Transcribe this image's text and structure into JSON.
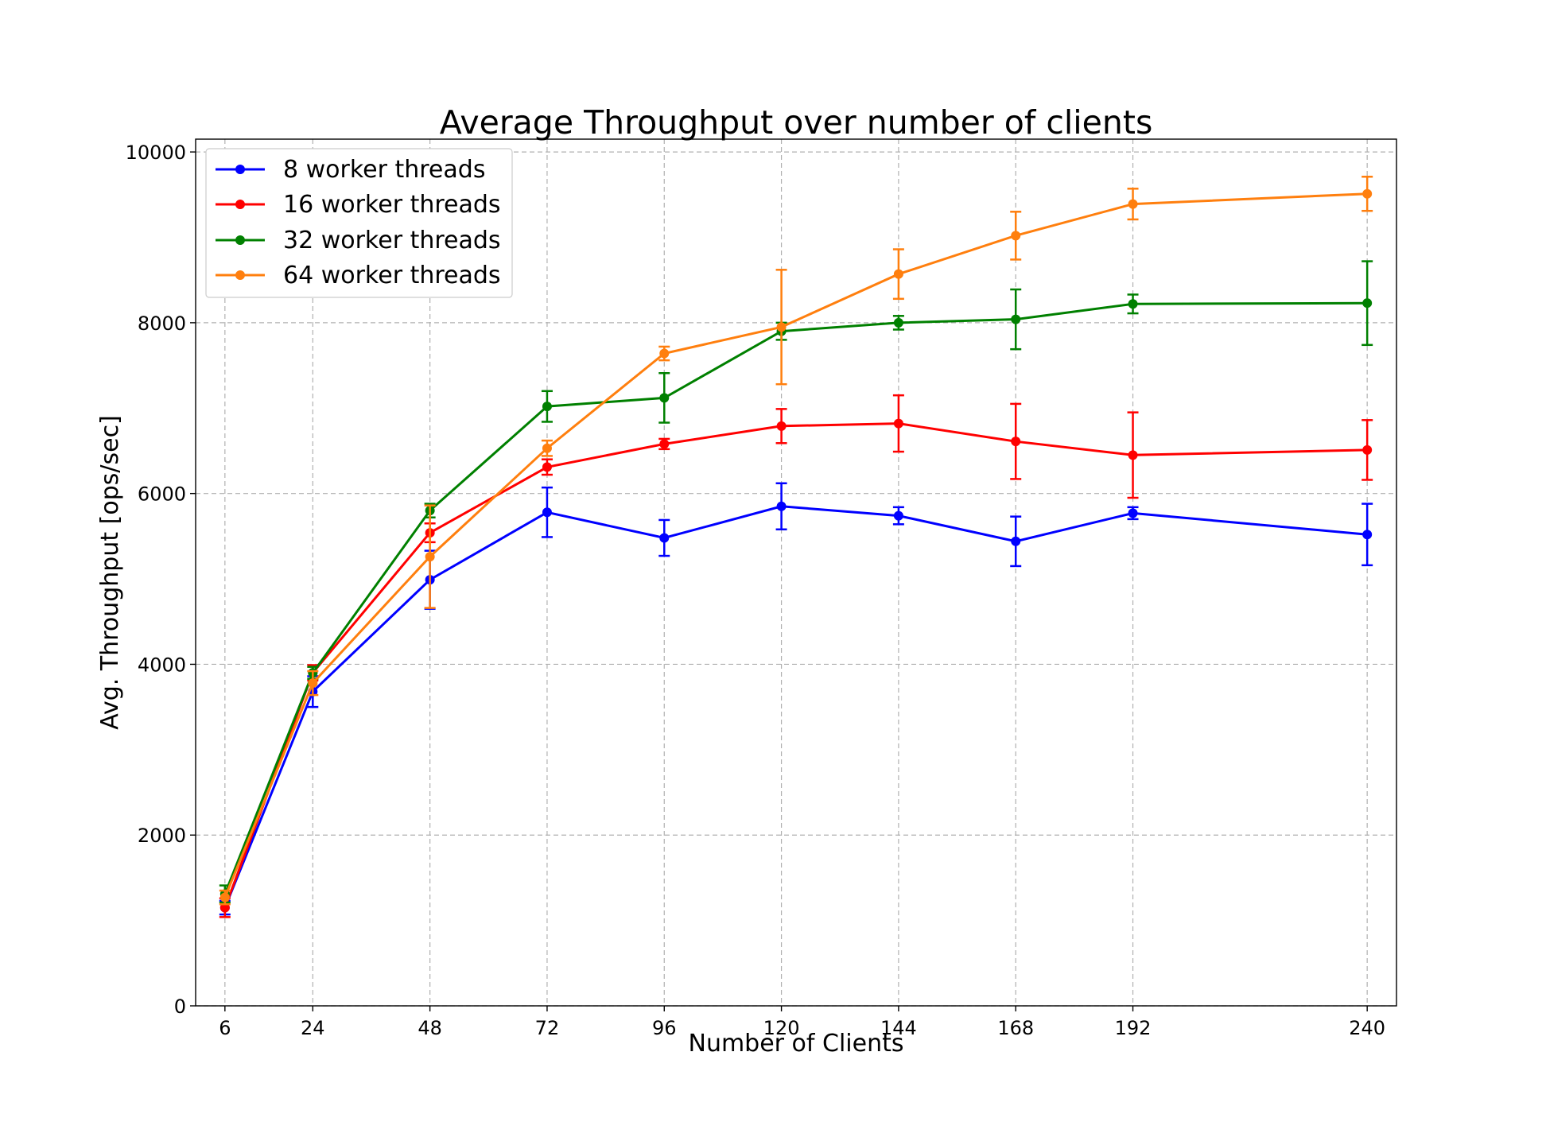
{
  "chart_data": {
    "type": "line",
    "title": "Average Throughput over number of clients",
    "xlabel": "Number of Clients",
    "ylabel": "Avg. Throughput [ops/sec]",
    "x": [
      6,
      24,
      48,
      72,
      96,
      120,
      144,
      168,
      192,
      240
    ],
    "x_ticks": [
      "6",
      "24",
      "48",
      "72",
      "96",
      "120",
      "144",
      "168",
      "192",
      "240"
    ],
    "xlim": [
      0,
      246
    ],
    "ylim": [
      0,
      10150
    ],
    "y_ticks": [
      0,
      2000,
      4000,
      6000,
      8000,
      10000
    ],
    "y_tick_labels": [
      "0",
      "2000",
      "4000",
      "6000",
      "8000",
      "10000"
    ],
    "grid": true,
    "legend_position": "top-left",
    "error_bars": true,
    "series": [
      {
        "name": "8 worker threads",
        "color": "#0000ff",
        "values": [
          1150,
          3680,
          4990,
          5780,
          5480,
          5850,
          5740,
          5440,
          5770,
          5520
        ],
        "errors": [
          80,
          180,
          340,
          290,
          210,
          270,
          100,
          290,
          70,
          360
        ]
      },
      {
        "name": "16 worker threads",
        "color": "#ff0000",
        "values": [
          1150,
          3900,
          5540,
          6310,
          6580,
          6790,
          6820,
          6610,
          6450,
          6510
        ],
        "errors": [
          110,
          90,
          110,
          90,
          60,
          200,
          330,
          440,
          500,
          350
        ]
      },
      {
        "name": "32 worker threads",
        "color": "#008000",
        "values": [
          1310,
          3900,
          5800,
          7020,
          7120,
          7900,
          8000,
          8040,
          8220,
          8230
        ],
        "errors": [
          100,
          70,
          80,
          180,
          290,
          100,
          80,
          350,
          110,
          490
        ]
      },
      {
        "name": "64 worker threads",
        "color": "#ff7f0e",
        "values": [
          1270,
          3780,
          5260,
          6530,
          7640,
          7950,
          8570,
          9020,
          9390,
          9510
        ],
        "errors": [
          80,
          140,
          600,
          90,
          80,
          670,
          290,
          280,
          180,
          200
        ]
      }
    ]
  }
}
